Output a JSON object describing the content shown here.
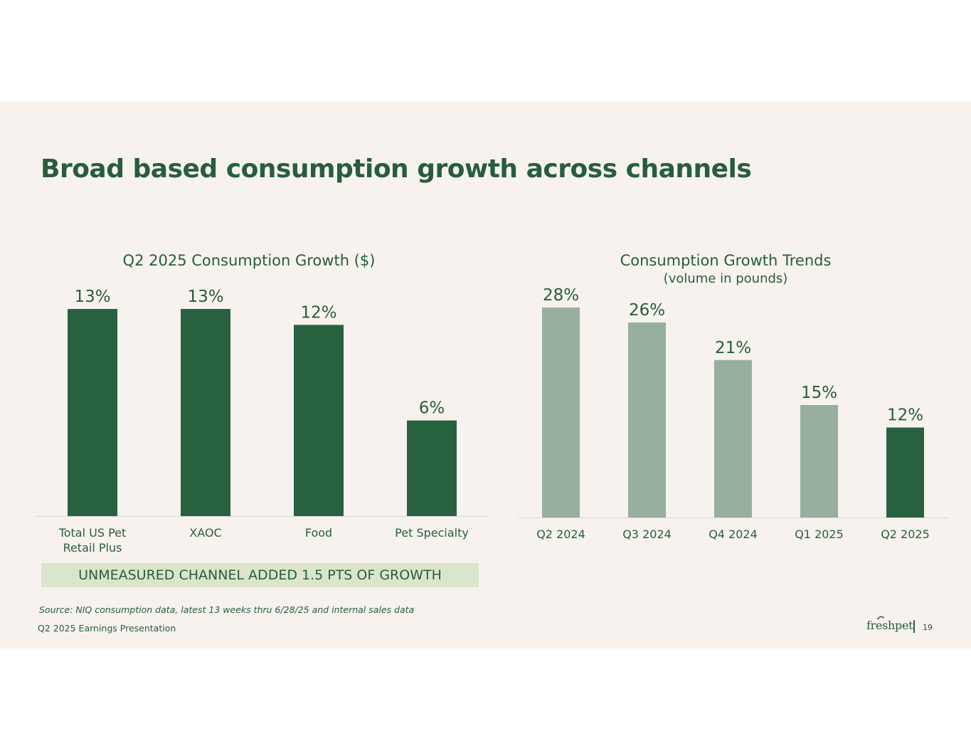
{
  "page": {
    "title": "Broad based consumption growth across channels",
    "callout": "UNMEASURED CHANNEL ADDED 1.5 PTS OF GROWTH",
    "source": "Source:  NIQ consumption data, latest 13 weeks thru 6/28/25 and internal sales data",
    "footer": "Q2 2025 Earnings Presentation",
    "logo_text": "freshpet",
    "page_number": "19"
  },
  "colors": {
    "dark_green": "#286140",
    "light_sage": "#97af9e",
    "axis": "#d9d9d9"
  },
  "chart_data": [
    {
      "type": "bar",
      "title": "Q2 2025 Consumption Growth ($)",
      "subtitle": "",
      "categories": [
        [
          "Total US Pet",
          "Retail Plus"
        ],
        [
          "XAOC"
        ],
        [
          "Food"
        ],
        [
          "Pet Specialty"
        ]
      ],
      "values": [
        13,
        13,
        12,
        6
      ],
      "data_labels": [
        "13%",
        "13%",
        "12%",
        "6%"
      ],
      "bar_colors": [
        "#286140",
        "#286140",
        "#286140",
        "#286140"
      ],
      "ylim": [
        0,
        13
      ],
      "xlabel": "",
      "ylabel": "",
      "grid": false,
      "legend": "none"
    },
    {
      "type": "bar",
      "title": "Consumption Growth Trends",
      "subtitle": "(volume in pounds)",
      "categories": [
        [
          "Q2 2024"
        ],
        [
          "Q3 2024"
        ],
        [
          "Q4 2024"
        ],
        [
          "Q1 2025"
        ],
        [
          "Q2 2025"
        ]
      ],
      "values": [
        28,
        26,
        21,
        15,
        12
      ],
      "data_labels": [
        "28%",
        "26%",
        "21%",
        "15%",
        "12%"
      ],
      "bar_colors": [
        "#97af9e",
        "#97af9e",
        "#97af9e",
        "#97af9e",
        "#286140"
      ],
      "ylim": [
        0,
        28
      ],
      "xlabel": "",
      "ylabel": "",
      "grid": false,
      "legend": "none"
    }
  ]
}
